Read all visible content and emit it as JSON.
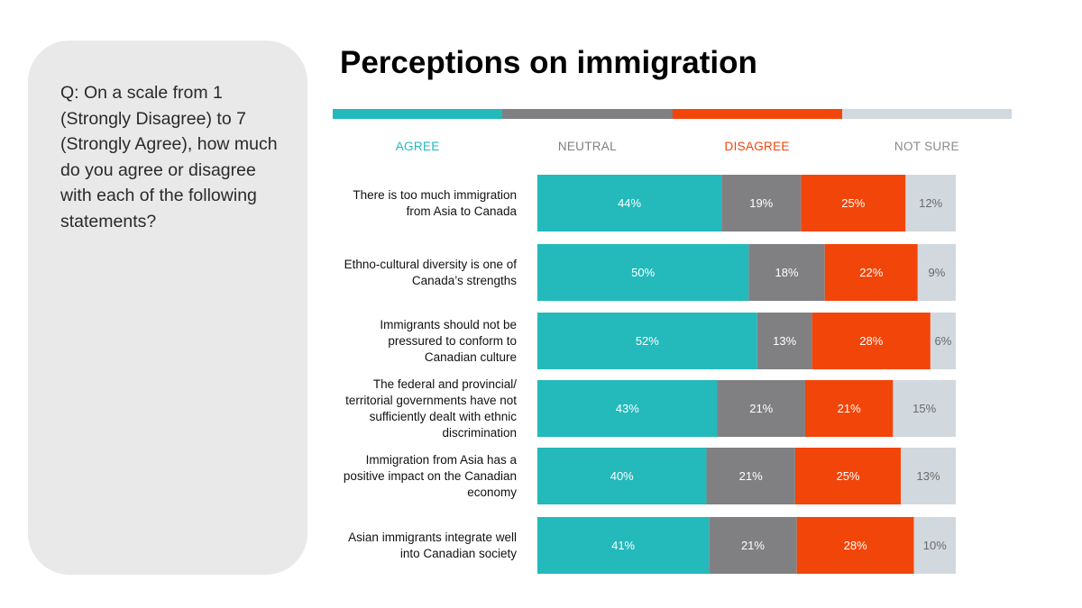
{
  "question": "Q: On a scale from 1 (Strongly Disagree) to 7 (Strongly Agree), how much do you agree or disagree with each of the following statements?",
  "colors": {
    "agree": "#24b9bb",
    "neutral": "#808083",
    "disagree": "#f2450a",
    "not_sure": "#d1d8de",
    "label_light": "#ffffff",
    "label_dark": "#6a6a6a"
  },
  "chart_data": {
    "type": "bar",
    "orientation": "horizontal",
    "stacked": true,
    "title": "Perceptions on immigration",
    "legend_position": "top",
    "categories": [
      [
        "There is too much immigration",
        "from Asia to Canada"
      ],
      [
        "Ethno-cultural diversity is one of",
        "Canada’s strengths"
      ],
      [
        "Immigrants should not be",
        "pressured to conform to",
        "Canadian culture"
      ],
      [
        "The federal and provincial/",
        "territorial governments have not",
        "sufficiently dealt with ethnic",
        "discrimination"
      ],
      [
        "Immigration from Asia has a",
        "positive impact on the Canadian",
        "economy"
      ],
      [
        "Asian immigrants integrate well",
        "into Canadian society"
      ]
    ],
    "series": [
      {
        "name": "AGREE",
        "color": "#24b9bb",
        "values": [
          44,
          50,
          52,
          43,
          40,
          41
        ]
      },
      {
        "name": "NEUTRAL",
        "color": "#808083",
        "values": [
          19,
          18,
          13,
          21,
          21,
          21
        ]
      },
      {
        "name": "DISAGREE",
        "color": "#f2450a",
        "values": [
          25,
          22,
          28,
          21,
          25,
          28
        ]
      },
      {
        "name": "NOT SURE",
        "color": "#d1d8de",
        "values": [
          12,
          9,
          6,
          15,
          13,
          10
        ]
      }
    ],
    "value_suffix": "%"
  }
}
